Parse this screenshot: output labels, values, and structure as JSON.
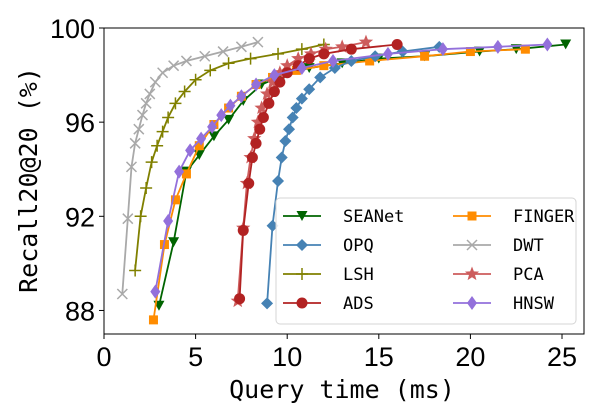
{
  "chart_data": {
    "type": "line",
    "title": "",
    "xlabel": "Query time (ms)",
    "ylabel": "Recall20@20 (%)",
    "xlim": [
      0,
      26.2
    ],
    "ylim": [
      87,
      100
    ],
    "xticks": [
      0,
      5,
      10,
      15,
      20,
      25
    ],
    "yticks": [
      88,
      92,
      96,
      100
    ],
    "grid": false,
    "legend_position": "lower-right",
    "series": [
      {
        "name": "SEANet",
        "color": "#006400",
        "marker": "triangle-down",
        "points": [
          [
            3.0,
            88.2
          ],
          [
            3.8,
            90.9
          ],
          [
            4.5,
            93.9
          ],
          [
            5.2,
            94.6
          ],
          [
            6.0,
            95.4
          ],
          [
            6.8,
            96.1
          ],
          [
            7.6,
            96.9
          ],
          [
            8.6,
            97.6
          ],
          [
            9.8,
            98.0
          ],
          [
            11.2,
            98.3
          ],
          [
            13.0,
            98.5
          ],
          [
            15.0,
            98.7
          ],
          [
            17.5,
            98.8
          ],
          [
            20.5,
            99.0
          ],
          [
            22.5,
            99.1
          ],
          [
            25.2,
            99.3
          ]
        ]
      },
      {
        "name": "FINGER",
        "color": "#ff8c00",
        "marker": "square",
        "points": [
          [
            2.7,
            87.6
          ],
          [
            3.3,
            90.8
          ],
          [
            3.9,
            92.7
          ],
          [
            4.5,
            93.8
          ],
          [
            5.2,
            95.0
          ],
          [
            6.0,
            95.9
          ],
          [
            6.8,
            96.6
          ],
          [
            7.5,
            97.1
          ],
          [
            8.3,
            97.6
          ],
          [
            9.2,
            97.9
          ],
          [
            10.5,
            98.2
          ],
          [
            12.0,
            98.4
          ],
          [
            14.5,
            98.6
          ],
          [
            17.5,
            98.8
          ],
          [
            20.0,
            99.0
          ],
          [
            23.0,
            99.1
          ]
        ]
      },
      {
        "name": "OPQ",
        "color": "#4682b4",
        "marker": "diamond",
        "points": [
          [
            8.9,
            88.3
          ],
          [
            9.2,
            91.6
          ],
          [
            9.5,
            93.5
          ],
          [
            9.7,
            94.5
          ],
          [
            9.9,
            95.2
          ],
          [
            10.1,
            95.7
          ],
          [
            10.3,
            96.2
          ],
          [
            10.5,
            96.6
          ],
          [
            10.8,
            97.0
          ],
          [
            11.2,
            97.4
          ],
          [
            11.8,
            97.9
          ],
          [
            12.6,
            98.3
          ],
          [
            13.5,
            98.6
          ],
          [
            14.8,
            98.8
          ],
          [
            16.3,
            99.0
          ],
          [
            18.3,
            99.2
          ]
        ]
      },
      {
        "name": "DWT",
        "color": "#a9a9a9",
        "marker": "x",
        "points": [
          [
            1.0,
            88.7
          ],
          [
            1.3,
            91.9
          ],
          [
            1.5,
            94.1
          ],
          [
            1.7,
            95.1
          ],
          [
            1.9,
            95.7
          ],
          [
            2.1,
            96.3
          ],
          [
            2.3,
            96.8
          ],
          [
            2.5,
            97.2
          ],
          [
            2.8,
            97.7
          ],
          [
            3.2,
            98.1
          ],
          [
            3.8,
            98.4
          ],
          [
            4.5,
            98.6
          ],
          [
            5.5,
            98.8
          ],
          [
            6.5,
            99.0
          ],
          [
            7.5,
            99.2
          ],
          [
            8.4,
            99.4
          ]
        ]
      },
      {
        "name": "LSH",
        "color": "#808000",
        "marker": "plus",
        "points": [
          [
            1.7,
            89.7
          ],
          [
            2.0,
            92.0
          ],
          [
            2.3,
            93.2
          ],
          [
            2.6,
            94.3
          ],
          [
            2.9,
            95.0
          ],
          [
            3.2,
            95.6
          ],
          [
            3.5,
            96.2
          ],
          [
            3.9,
            96.8
          ],
          [
            4.4,
            97.3
          ],
          [
            5.0,
            97.8
          ],
          [
            5.8,
            98.2
          ],
          [
            6.8,
            98.5
          ],
          [
            8.0,
            98.7
          ],
          [
            9.5,
            98.9
          ],
          [
            10.8,
            99.1
          ],
          [
            12.0,
            99.3
          ]
        ]
      },
      {
        "name": "PCA",
        "color": "#cd5c5c",
        "marker": "star",
        "points": [
          [
            7.3,
            88.4
          ],
          [
            7.6,
            91.5
          ],
          [
            7.8,
            93.4
          ],
          [
            8.0,
            94.5
          ],
          [
            8.2,
            95.3
          ],
          [
            8.4,
            96.0
          ],
          [
            8.6,
            96.6
          ],
          [
            8.9,
            97.2
          ],
          [
            9.2,
            97.7
          ],
          [
            9.6,
            98.1
          ],
          [
            10.0,
            98.4
          ],
          [
            10.6,
            98.7
          ],
          [
            11.3,
            98.9
          ],
          [
            12.1,
            99.1
          ],
          [
            13.0,
            99.2
          ],
          [
            14.3,
            99.4
          ]
        ]
      },
      {
        "name": "ADS",
        "color": "#b22222",
        "marker": "circle",
        "points": [
          [
            7.4,
            88.5
          ],
          [
            7.6,
            91.4
          ],
          [
            7.9,
            93.4
          ],
          [
            8.1,
            94.5
          ],
          [
            8.3,
            95.1
          ],
          [
            8.5,
            95.7
          ],
          [
            8.7,
            96.2
          ],
          [
            9.0,
            96.8
          ],
          [
            9.3,
            97.3
          ],
          [
            9.6,
            97.7
          ],
          [
            10.0,
            98.1
          ],
          [
            10.6,
            98.4
          ],
          [
            11.2,
            98.7
          ],
          [
            12.0,
            98.9
          ],
          [
            13.5,
            99.1
          ],
          [
            16.0,
            99.3
          ]
        ]
      },
      {
        "name": "HNSW",
        "color": "#9370db",
        "marker": "thin-diamond",
        "points": [
          [
            2.8,
            88.8
          ],
          [
            3.5,
            91.8
          ],
          [
            4.1,
            93.9
          ],
          [
            4.7,
            94.8
          ],
          [
            5.3,
            95.3
          ],
          [
            5.9,
            95.8
          ],
          [
            6.4,
            96.3
          ],
          [
            6.9,
            96.7
          ],
          [
            7.5,
            97.1
          ],
          [
            8.3,
            97.6
          ],
          [
            9.3,
            98.0
          ],
          [
            10.8,
            98.3
          ],
          [
            12.5,
            98.6
          ],
          [
            15.5,
            98.9
          ],
          [
            18.5,
            99.1
          ],
          [
            21.5,
            99.2
          ],
          [
            24.2,
            99.3
          ]
        ]
      }
    ]
  }
}
